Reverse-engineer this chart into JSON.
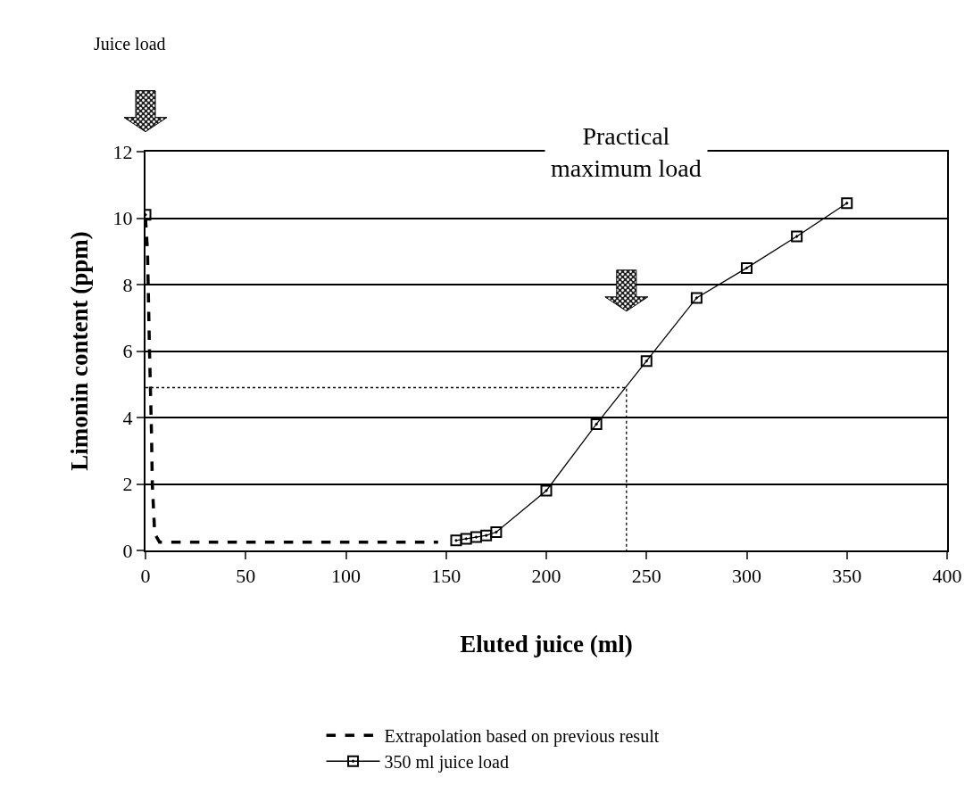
{
  "chart_data": {
    "type": "line",
    "xlabel": "Eluted juice (ml)",
    "ylabel": "Limonin content (ppm)",
    "xlim": [
      0,
      400
    ],
    "xticks": [
      0,
      50,
      100,
      150,
      200,
      250,
      300,
      350,
      400
    ],
    "ylim": [
      0,
      12
    ],
    "yticks": [
      0,
      2,
      4,
      6,
      8,
      10,
      12
    ],
    "grid": "y",
    "legend": "bottom",
    "annotations": [
      "Juice load",
      "Practical\nmaximum load"
    ],
    "series": [
      {
        "name": "Extrapolation based on previous result",
        "color": "#000000",
        "line_style": "dashed",
        "marker": "none",
        "x": [
          0,
          1,
          2,
          3,
          3.4,
          4.6,
          7,
          146
        ],
        "values": [
          10,
          9,
          6,
          3.5,
          2,
          0.5,
          0.25,
          0.25
        ]
      },
      {
        "name": "350 ml juice load",
        "color": "#000000",
        "line_style": "solid",
        "marker": "square",
        "x": [
          0,
          77,
          155,
          160,
          165,
          170,
          175,
          200,
          225,
          250,
          275,
          300,
          325,
          350
        ],
        "values": [
          10.1,
          null,
          0.3,
          0.35,
          0.4,
          0.45,
          0.55,
          1.8,
          3.8,
          5.7,
          7.6,
          8.5,
          9.45,
          10.45
        ]
      },
      {
        "color": "#000000",
        "line_style": "dotted",
        "marker": "none",
        "x": [
          0,
          240,
          240
        ],
        "values": [
          4.9,
          4.9,
          0
        ]
      }
    ]
  }
}
